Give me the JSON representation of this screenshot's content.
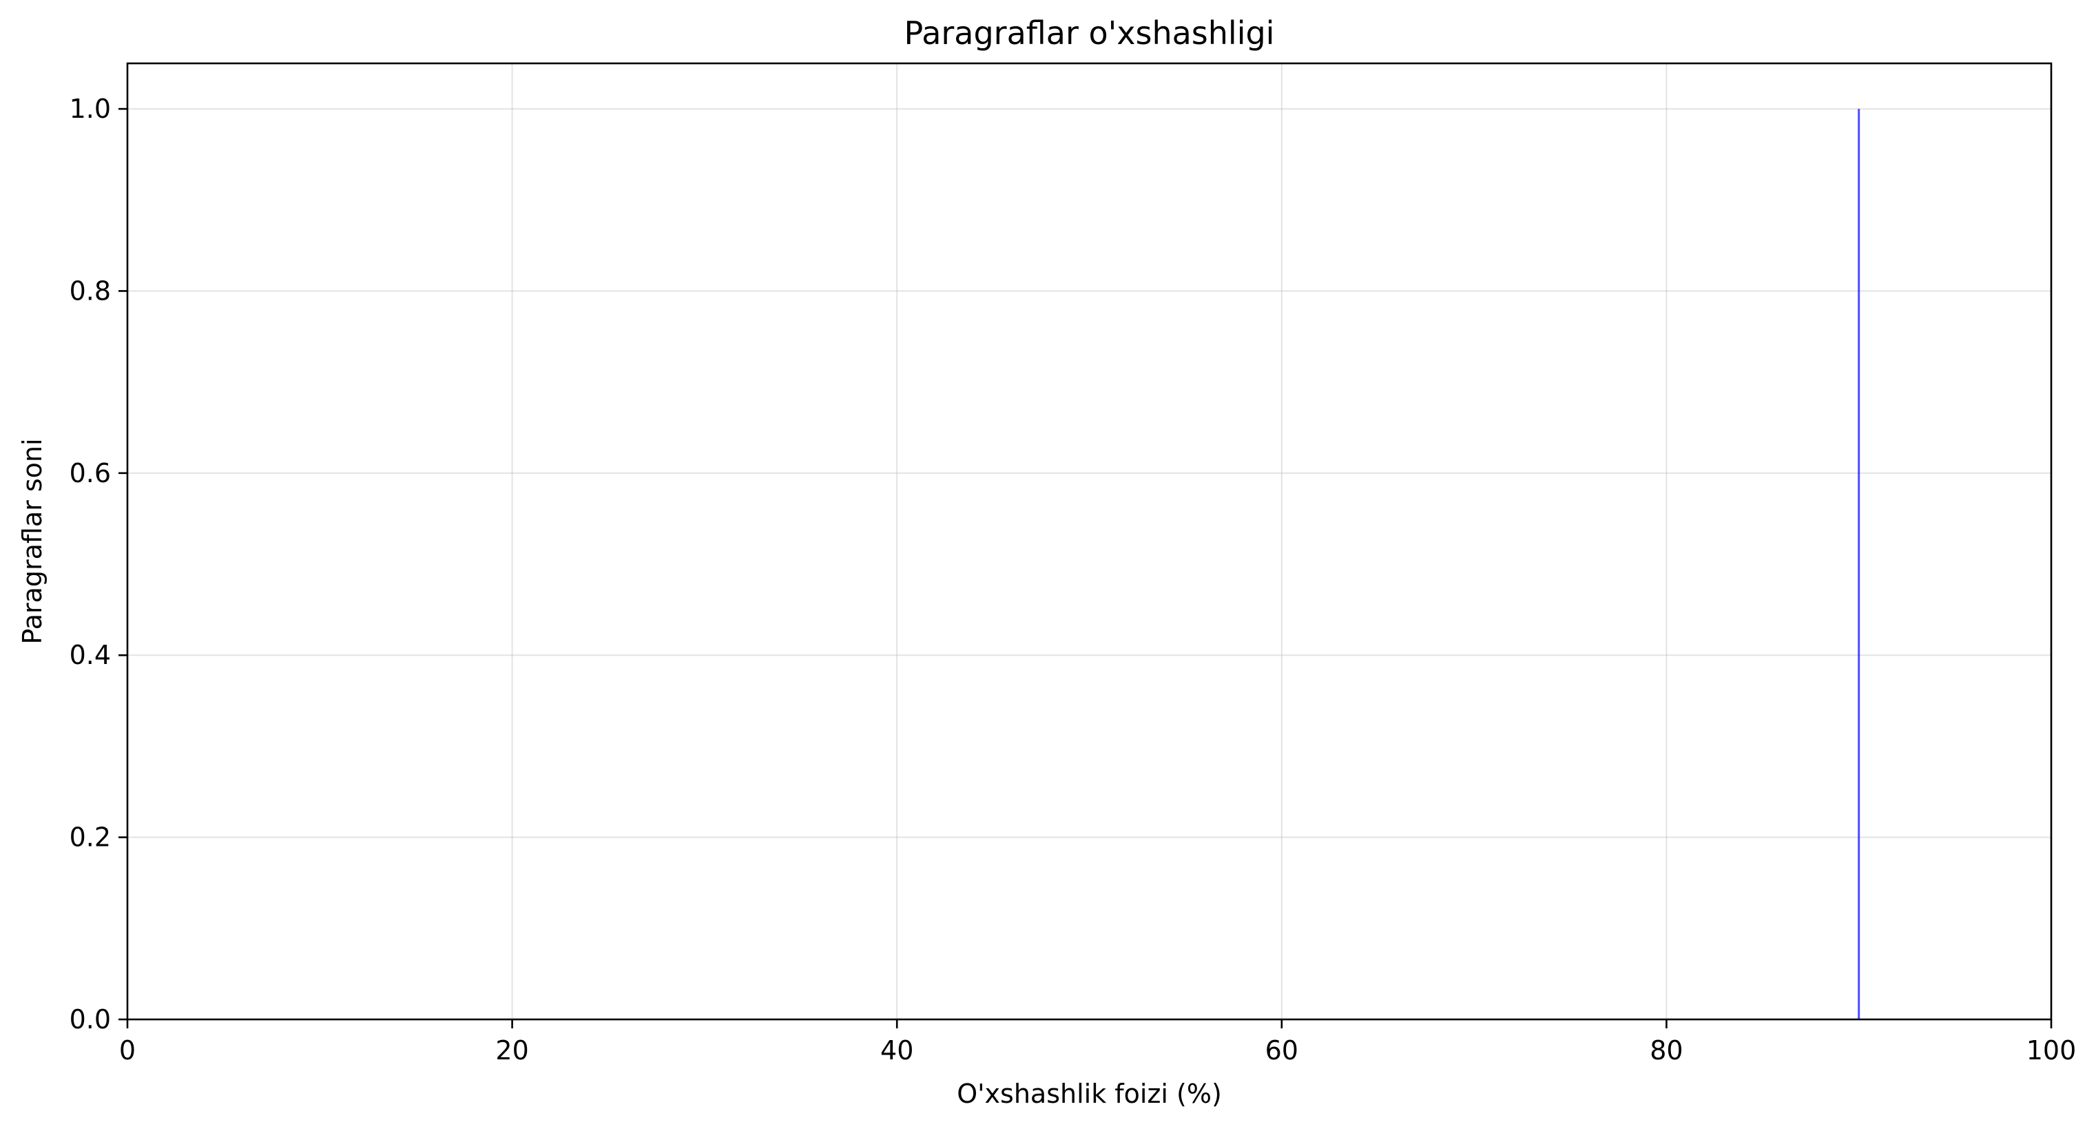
{
  "chart_data": {
    "type": "bar",
    "title": "Paragraflar o'xshashligi",
    "xlabel": "O'xshashlik foizi (%)",
    "ylabel": "Paragraflar soni",
    "xlim": [
      0,
      100
    ],
    "ylim": [
      0,
      1.05
    ],
    "xticks": [
      0,
      20,
      40,
      60,
      80,
      100
    ],
    "xtick_labels": [
      "0",
      "20",
      "40",
      "60",
      "80",
      "100"
    ],
    "yticks": [
      0.0,
      0.2,
      0.4,
      0.6,
      0.8,
      1.0
    ],
    "ytick_labels": [
      "0.0",
      "0.2",
      "0.4",
      "0.6",
      "0.8",
      "1.0"
    ],
    "grid": true,
    "bars": [
      {
        "x": 90,
        "value": 1.0
      }
    ],
    "bar_color": "#0000ff",
    "bar_alpha": 0.7,
    "grid_color": "#b0b0b0"
  }
}
